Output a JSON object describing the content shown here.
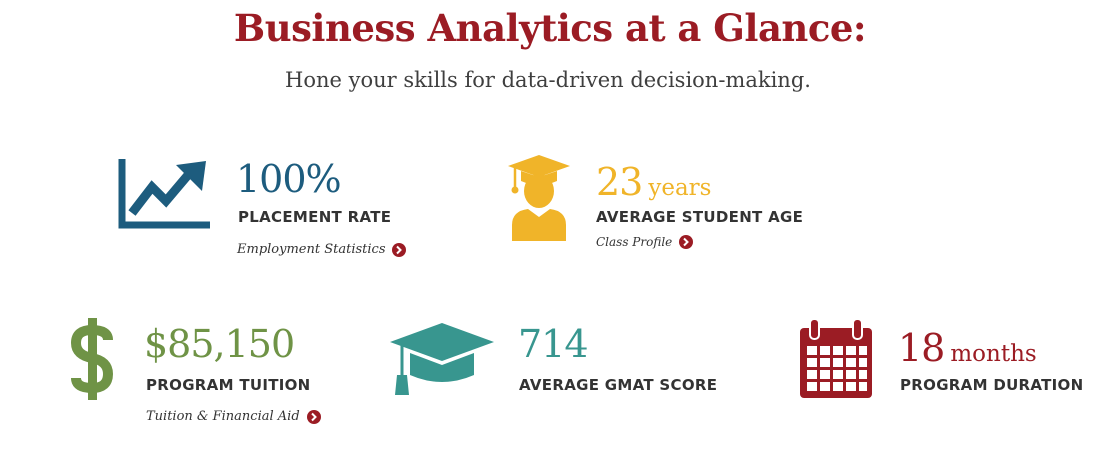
{
  "header": {
    "title": "Business Analytics at a Glance:",
    "subtitle": "Hone your skills for data-driven decision-making."
  },
  "colors": {
    "title": "#9b1c24",
    "placement": "#1d5c7e",
    "age": "#f0b429",
    "tuition": "#6f9346",
    "gmat": "#38968f",
    "duration": "#9b1c24",
    "arrow": "#9b1c24"
  },
  "stats": {
    "placement": {
      "icon": "trending-chart-icon",
      "value": "100%",
      "label": "PLACEMENT RATE",
      "link": "Employment Statistics"
    },
    "age": {
      "icon": "graduate-student-icon",
      "value": "23",
      "unit": "years",
      "label": "AVERAGE STUDENT AGE",
      "link": "Class Profile"
    },
    "tuition": {
      "icon": "dollar-icon",
      "value": "$85,150",
      "label": "PROGRAM TUITION",
      "link": "Tuition & Financial Aid"
    },
    "gmat": {
      "icon": "graduation-cap-icon",
      "value": "714",
      "label": "AVERAGE GMAT SCORE"
    },
    "duration": {
      "icon": "calendar-icon",
      "value": "18",
      "unit": "months",
      "label": "PROGRAM DURATION"
    }
  }
}
